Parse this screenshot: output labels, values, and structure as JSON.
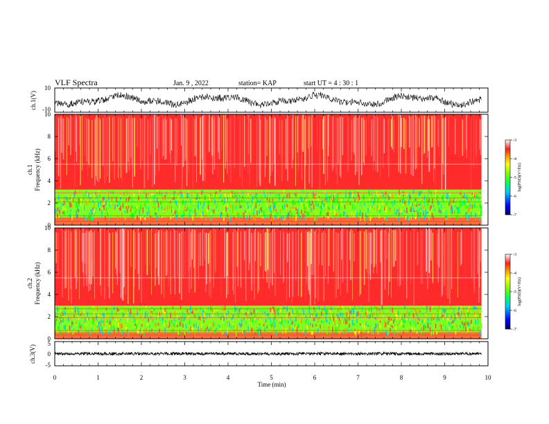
{
  "header": {
    "title": "VLF Spectra",
    "date": "Jan. 9 , 2022",
    "station": "station= KAP",
    "start": "start UT = 4 : 30 : 1"
  },
  "chart_data": [
    {
      "type": "line",
      "panel": "ch1-waveform",
      "ylabel": "ch.1(V)",
      "ylim": [
        -10,
        10
      ],
      "y_ticks": [
        "10",
        "-10"
      ],
      "x_range_min": [
        0,
        9.85
      ],
      "signal_range": [
        -6.5,
        6.5
      ],
      "line_color": "#000000"
    },
    {
      "type": "heatmap",
      "panel": "ch1-spectrogram",
      "ylabel": "ch.1 Frequency (kHz)",
      "ylim": [
        0,
        10
      ],
      "y_ticks": [
        "0",
        "2",
        "4",
        "6",
        "8",
        "10"
      ],
      "x_range_min": [
        0,
        9.85
      ],
      "bands_khz": {
        "noise_band": [
          0,
          3.2
        ],
        "lower_gap": [
          0,
          0.7
        ],
        "upper_noise": [
          3.2,
          10
        ]
      },
      "colorbar": {
        "label": "log(PSD)(V²/Hz)",
        "range": [
          -7,
          -3
        ],
        "ticks": [
          "-3",
          "-4",
          "-5",
          "-6",
          "-7"
        ]
      }
    },
    {
      "type": "heatmap",
      "panel": "ch2-spectrogram",
      "ylabel": "ch.2 Frequency (kHz)",
      "ylim": [
        0,
        10
      ],
      "y_ticks": [
        "0",
        "2",
        "4",
        "6",
        "8",
        "10"
      ],
      "x_range_min": [
        0,
        9.85
      ],
      "bands_khz": {
        "noise_band": [
          0,
          3.0
        ],
        "lower_gap": [
          0,
          0.6
        ],
        "upper_noise": [
          3.0,
          10
        ]
      },
      "colorbar": {
        "label": "log(PSD)(V²/Hz)",
        "range": [
          -7,
          -3
        ],
        "ticks": [
          "-3",
          "-4",
          "-5",
          "-6",
          "-7"
        ]
      }
    },
    {
      "type": "line",
      "panel": "ch3-waveform",
      "ylabel": "ch.3(V)",
      "ylim": [
        -5,
        5
      ],
      "y_ticks": [
        "5",
        "0",
        "-5"
      ],
      "x_range_min": [
        0,
        9.85
      ],
      "signal_range": [
        -0.6,
        0.6
      ],
      "line_color": "#000000"
    }
  ],
  "xaxis": {
    "label": "Time (min)",
    "ticks": [
      "0",
      "1",
      "2",
      "3",
      "4",
      "5",
      "6",
      "7",
      "8",
      "9",
      "10"
    ],
    "range": [
      0,
      10
    ]
  },
  "colormap": [
    "#000080",
    "#0000ff",
    "#00a0ff",
    "#00ffa0",
    "#00ff00",
    "#a0ff00",
    "#ffff00",
    "#ff9900",
    "#ff2020",
    "#ff9090",
    "#ffffff"
  ]
}
